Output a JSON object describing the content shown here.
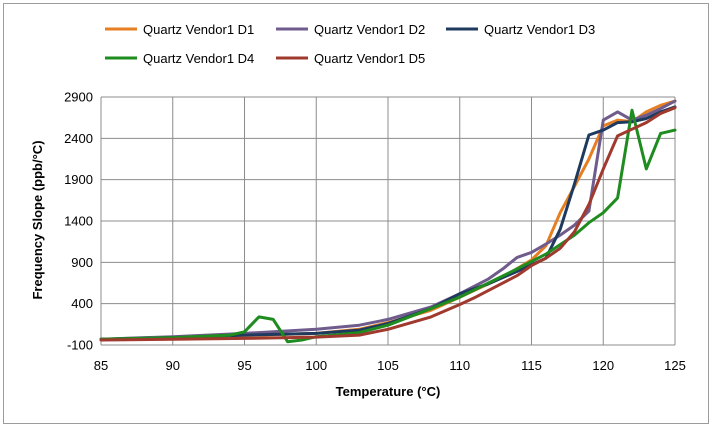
{
  "chart_data": {
    "type": "line",
    "title": "",
    "xlabel": "Temperature (°C)",
    "ylabel": "Frequency Slope (ppb/°C)",
    "xlim": [
      85,
      125
    ],
    "ylim": [
      -100,
      2900
    ],
    "xticks": [
      85,
      90,
      95,
      100,
      105,
      110,
      115,
      120,
      125
    ],
    "yticks": [
      -100,
      400,
      900,
      1400,
      1900,
      2400,
      2900
    ],
    "grid": true,
    "legend_position": "top",
    "series": [
      {
        "name": "Quartz Vendor1 D1",
        "color": "#E67E22",
        "points": [
          [
            85,
            -30
          ],
          [
            90,
            -5
          ],
          [
            95,
            15
          ],
          [
            100,
            40
          ],
          [
            103,
            90
          ],
          [
            105,
            170
          ],
          [
            108,
            320
          ],
          [
            110,
            480
          ],
          [
            113,
            720
          ],
          [
            115,
            930
          ],
          [
            116,
            1100
          ],
          [
            117,
            1500
          ],
          [
            118,
            1820
          ],
          [
            119,
            2150
          ],
          [
            120,
            2550
          ],
          [
            121,
            2620
          ],
          [
            122,
            2600
          ],
          [
            123,
            2720
          ],
          [
            124,
            2800
          ],
          [
            125,
            2850
          ]
        ]
      },
      {
        "name": "Quartz Vendor1 D2",
        "color": "#6F5B8C",
        "points": [
          [
            85,
            -30
          ],
          [
            90,
            0
          ],
          [
            95,
            40
          ],
          [
            100,
            90
          ],
          [
            103,
            140
          ],
          [
            105,
            210
          ],
          [
            108,
            360
          ],
          [
            110,
            520
          ],
          [
            112,
            700
          ],
          [
            113,
            820
          ],
          [
            114,
            960
          ],
          [
            115,
            1020
          ],
          [
            116,
            1120
          ],
          [
            117,
            1230
          ],
          [
            118,
            1350
          ],
          [
            119,
            1520
          ],
          [
            120,
            2620
          ],
          [
            121,
            2720
          ],
          [
            122,
            2620
          ],
          [
            123,
            2680
          ],
          [
            124,
            2760
          ],
          [
            125,
            2850
          ]
        ]
      },
      {
        "name": "Quartz Vendor1 D3",
        "color": "#1F3A5F",
        "points": [
          [
            85,
            -30
          ],
          [
            90,
            -10
          ],
          [
            95,
            20
          ],
          [
            100,
            40
          ],
          [
            103,
            80
          ],
          [
            105,
            160
          ],
          [
            108,
            340
          ],
          [
            110,
            520
          ],
          [
            112,
            640
          ],
          [
            114,
            790
          ],
          [
            116,
            950
          ],
          [
            117,
            1300
          ],
          [
            118,
            1850
          ],
          [
            119,
            2440
          ],
          [
            120,
            2500
          ],
          [
            121,
            2590
          ],
          [
            122,
            2600
          ],
          [
            123,
            2640
          ],
          [
            124,
            2720
          ],
          [
            125,
            2780
          ]
        ]
      },
      {
        "name": "Quartz Vendor1 D4",
        "color": "#1E8C1E",
        "points": [
          [
            85,
            -30
          ],
          [
            90,
            -10
          ],
          [
            94,
            20
          ],
          [
            95,
            60
          ],
          [
            96,
            240
          ],
          [
            97,
            210
          ],
          [
            98,
            -60
          ],
          [
            99,
            -40
          ],
          [
            100,
            0
          ],
          [
            103,
            50
          ],
          [
            105,
            140
          ],
          [
            108,
            340
          ],
          [
            110,
            480
          ],
          [
            112,
            650
          ],
          [
            114,
            820
          ],
          [
            116,
            1000
          ],
          [
            118,
            1230
          ],
          [
            119,
            1380
          ],
          [
            120,
            1500
          ],
          [
            121,
            1680
          ],
          [
            122,
            2740
          ],
          [
            123,
            2030
          ],
          [
            124,
            2460
          ],
          [
            125,
            2500
          ]
        ]
      },
      {
        "name": "Quartz Vendor1 D5",
        "color": "#A0392E",
        "points": [
          [
            85,
            -40
          ],
          [
            90,
            -30
          ],
          [
            95,
            -20
          ],
          [
            100,
            -5
          ],
          [
            103,
            20
          ],
          [
            105,
            90
          ],
          [
            108,
            240
          ],
          [
            110,
            390
          ],
          [
            111,
            470
          ],
          [
            112,
            560
          ],
          [
            114,
            740
          ],
          [
            115,
            860
          ],
          [
            116,
            950
          ],
          [
            117,
            1070
          ],
          [
            118,
            1270
          ],
          [
            119,
            1600
          ],
          [
            120,
            2030
          ],
          [
            121,
            2430
          ],
          [
            122,
            2510
          ],
          [
            123,
            2590
          ],
          [
            124,
            2700
          ],
          [
            125,
            2770
          ]
        ]
      }
    ]
  }
}
